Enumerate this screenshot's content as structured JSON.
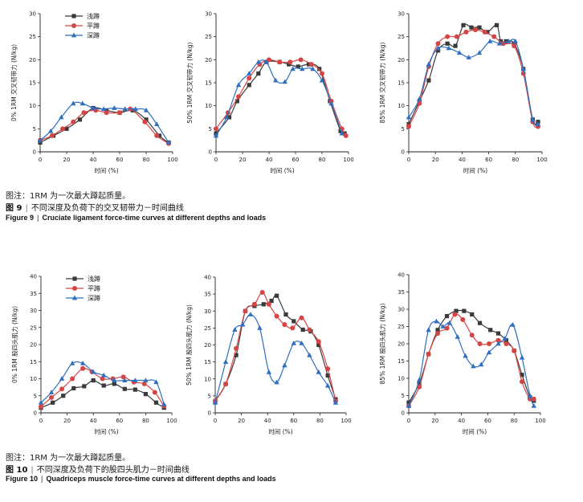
{
  "colors": {
    "squat_shallow": "#3a3a3a",
    "squat_parallel": "#d64545",
    "squat_deep": "#2e6fbf",
    "axis": "#222222"
  },
  "legend": [
    "浅蹲",
    "平蹲",
    "深蹲"
  ],
  "figure9": {
    "note": "图注：1RM 为一次最大蹲起质量。",
    "title_cn_num": "图 9",
    "title_cn": "不同深度及负荷下的交叉韧带力－时间曲线",
    "title_en_num": "Figure 9",
    "title_en": "Cruciate ligament force-time curves at different depths and loads"
  },
  "figure10": {
    "note": "图注：1RM 为一次最大蹲起质量。",
    "title_cn_num": "图 10",
    "title_cn": "不同深度及负荷下的股四头肌力－时间曲线",
    "title_en_num": "Figure 10",
    "title_en": "Quadriceps muscle force-time curves at different depths and loads"
  },
  "chart_data": [
    {
      "type": "line",
      "id": "c1",
      "title": "",
      "xlabel": "时间 (%)",
      "ylabel": "0% 1RM 交叉韧带力 (N/kg)",
      "xlim": [
        0,
        100
      ],
      "ylim": [
        0,
        30
      ],
      "xticks": [
        0,
        20,
        40,
        60,
        80,
        100
      ],
      "yticks": [
        0,
        5,
        10,
        15,
        20,
        25,
        30
      ],
      "legend_position": "top-left",
      "grid": false,
      "series": [
        {
          "name": "浅蹲",
          "x": [
            0,
            10,
            20,
            30,
            40,
            50,
            60,
            70,
            80,
            90,
            97
          ],
          "y": [
            2,
            3.5,
            5,
            7,
            9.5,
            9,
            8.5,
            9,
            7,
            3.5,
            2
          ]
        },
        {
          "name": "平蹲",
          "x": [
            0,
            9,
            17,
            25,
            33,
            42,
            50,
            60,
            68,
            79,
            88,
            97
          ],
          "y": [
            2.5,
            3.5,
            5,
            6.5,
            8.5,
            9,
            8.5,
            8.5,
            9.3,
            6.5,
            3.5,
            1.8
          ]
        },
        {
          "name": "深蹲",
          "x": [
            0,
            8,
            16,
            25,
            32,
            40,
            48,
            56,
            64,
            72,
            80,
            88,
            97
          ],
          "y": [
            2.5,
            4.5,
            7.5,
            10.5,
            10.5,
            9.5,
            9.3,
            9.5,
            9.3,
            9.3,
            9,
            6,
            2
          ]
        }
      ]
    },
    {
      "type": "line",
      "id": "c2",
      "title": "",
      "xlabel": "时间 (%)",
      "ylabel": "50% 1RM 交叉韧带力 (N/kg)",
      "xlim": [
        0,
        100
      ],
      "ylim": [
        0,
        30
      ],
      "xticks": [
        0,
        20,
        40,
        60,
        80,
        100
      ],
      "yticks": [
        0,
        5,
        10,
        15,
        20,
        25,
        30
      ],
      "legend_position": "none",
      "grid": false,
      "series": [
        {
          "name": "浅蹲",
          "x": [
            0,
            10,
            16,
            25,
            32,
            38,
            48,
            55,
            62,
            70,
            78,
            86,
            94,
            97
          ],
          "y": [
            4,
            7.5,
            11,
            14.5,
            17,
            19.5,
            19.5,
            19,
            18.5,
            19,
            18,
            11,
            4.5,
            4
          ]
        },
        {
          "name": "平蹲",
          "x": [
            0,
            9,
            17,
            25,
            33,
            40,
            48,
            56,
            64,
            72,
            80,
            87,
            95,
            98
          ],
          "y": [
            5,
            8.5,
            12,
            16,
            19,
            20,
            19.5,
            19.5,
            20,
            19,
            17,
            11,
            5,
            3.5
          ]
        },
        {
          "name": "深蹲",
          "x": [
            0,
            8,
            17,
            25,
            32,
            38,
            45,
            52,
            58,
            65,
            73,
            80,
            87,
            95
          ],
          "y": [
            3.5,
            7.5,
            14.5,
            17,
            19.5,
            19.5,
            15.5,
            15.2,
            18,
            18,
            18,
            15.5,
            10.5,
            4
          ]
        }
      ]
    },
    {
      "type": "line",
      "id": "c3",
      "title": "",
      "xlabel": "时间 (%)",
      "ylabel": "85% 1RM 交叉韧带力 (N/kg)",
      "xlim": [
        0,
        100
      ],
      "ylim": [
        0,
        30
      ],
      "xticks": [
        0,
        20,
        40,
        60,
        80,
        100
      ],
      "yticks": [
        0,
        5,
        10,
        15,
        20,
        25,
        30
      ],
      "legend_position": "none",
      "grid": false,
      "series": [
        {
          "name": "浅蹲",
          "x": [
            0,
            8,
            15,
            22,
            29,
            35,
            41,
            47,
            53,
            59,
            66,
            69,
            73,
            79,
            86,
            93,
            97
          ],
          "y": [
            6,
            11,
            15.5,
            22,
            23.5,
            23,
            27.5,
            27,
            27,
            26,
            27.5,
            24,
            24,
            23.5,
            18,
            7,
            6.5
          ]
        },
        {
          "name": "平蹲",
          "x": [
            0,
            8,
            15,
            22,
            29,
            36,
            43,
            50,
            57,
            64,
            71,
            79,
            86,
            93,
            97
          ],
          "y": [
            5.5,
            10.5,
            18.5,
            23.5,
            25,
            25,
            26,
            26.5,
            26,
            25,
            23.5,
            23,
            17,
            6.5,
            5.5
          ]
        },
        {
          "name": "深蹲",
          "x": [
            0,
            8,
            15,
            22,
            30,
            38,
            45,
            53,
            61,
            68,
            75,
            80,
            86,
            93,
            97
          ],
          "y": [
            7.5,
            11.5,
            19,
            22.5,
            22.5,
            21.5,
            20.5,
            21.5,
            24,
            23.5,
            24,
            24,
            18,
            7,
            6
          ]
        }
      ]
    },
    {
      "type": "line",
      "id": "c4",
      "title": "",
      "xlabel": "时间 (%)",
      "ylabel": "0% 1RM 股四头肌力 (N/kg)",
      "xlim": [
        0,
        100
      ],
      "ylim": [
        0,
        40
      ],
      "xticks": [
        0,
        20,
        40,
        60,
        80,
        100
      ],
      "yticks": [
        0,
        5,
        10,
        15,
        20,
        25,
        30,
        35,
        40
      ],
      "legend_position": "top-left",
      "grid": false,
      "series": [
        {
          "name": "浅蹲",
          "x": [
            0,
            9,
            17,
            25,
            33,
            40,
            48,
            56,
            64,
            72,
            80,
            88,
            94
          ],
          "y": [
            1.5,
            3,
            5,
            7.2,
            7.8,
            9.5,
            8,
            8.5,
            7,
            6.8,
            5.5,
            3,
            1.5
          ]
        },
        {
          "name": "平蹲",
          "x": [
            0,
            8,
            16,
            24,
            32,
            39,
            47,
            55,
            63,
            71,
            79,
            87,
            94
          ],
          "y": [
            1.8,
            4.5,
            7,
            10,
            13,
            12,
            10,
            10,
            10.5,
            9,
            8.5,
            6,
            2
          ]
        },
        {
          "name": "深蹲",
          "x": [
            0,
            8,
            16,
            24,
            32,
            40,
            48,
            56,
            64,
            72,
            80,
            88,
            94
          ],
          "y": [
            3,
            6,
            10,
            14.5,
            14.5,
            12,
            11,
            9.5,
            9.5,
            9.5,
            9.5,
            9,
            2.5
          ]
        }
      ]
    },
    {
      "type": "line",
      "id": "c5",
      "title": "",
      "xlabel": "时间 (%)",
      "ylabel": "50% 1RM 股四头肌力 (N/kg)",
      "xlim": [
        0,
        100
      ],
      "ylim": [
        0,
        40
      ],
      "xticks": [
        0,
        20,
        40,
        60,
        80,
        100
      ],
      "yticks": [
        0,
        5,
        10,
        15,
        20,
        25,
        30,
        35,
        40
      ],
      "legend_position": "none",
      "grid": false,
      "series": [
        {
          "name": "浅蹲",
          "x": [
            0,
            8,
            16,
            23,
            30,
            37,
            43,
            47,
            54,
            60,
            67,
            73,
            79,
            86,
            92
          ],
          "y": [
            3.5,
            8.5,
            17,
            30,
            31.5,
            32,
            33,
            34.5,
            29,
            27,
            24.5,
            24,
            20,
            11,
            4
          ]
        },
        {
          "name": "平蹲",
          "x": [
            0,
            8,
            16,
            23,
            30,
            36,
            41,
            47,
            53,
            59,
            66,
            72,
            79,
            86,
            92
          ],
          "y": [
            3.5,
            8.5,
            19,
            30,
            32,
            35.5,
            32,
            28.5,
            26,
            25,
            28,
            24.5,
            21,
            13,
            3.5
          ]
        },
        {
          "name": "深蹲",
          "x": [
            0,
            8,
            15,
            21,
            27,
            34,
            41,
            47,
            53,
            60,
            66,
            72,
            79,
            86,
            92
          ],
          "y": [
            3,
            15,
            24.5,
            26,
            29,
            25,
            12,
            9,
            14,
            20.5,
            20.5,
            17,
            12,
            8,
            3
          ]
        }
      ]
    },
    {
      "type": "line",
      "id": "c6",
      "title": "",
      "xlabel": "时间 (%)",
      "ylabel": "85% 1RM 股四头肌力 (N/kg)",
      "xlim": [
        0,
        100
      ],
      "ylim": [
        0,
        40
      ],
      "xticks": [
        0,
        20,
        40,
        60,
        80,
        100
      ],
      "yticks": [
        0,
        5,
        10,
        15,
        20,
        25,
        30,
        35,
        40
      ],
      "legend_position": "none",
      "grid": false,
      "series": [
        {
          "name": "浅蹲",
          "x": [
            0,
            8,
            15,
            22,
            29,
            36,
            42,
            48,
            54,
            62,
            68,
            74,
            80,
            86,
            92,
            95
          ],
          "y": [
            3,
            8.5,
            17,
            24,
            28,
            29.5,
            29.5,
            28.5,
            26,
            24,
            23,
            21,
            18,
            11,
            4.5,
            3.5
          ]
        },
        {
          "name": "平蹲",
          "x": [
            0,
            8,
            15,
            22,
            29,
            35,
            41,
            48,
            54,
            61,
            68,
            74,
            80,
            86,
            92,
            95
          ],
          "y": [
            2,
            7.5,
            17,
            23,
            24.5,
            28.5,
            27,
            22.5,
            20,
            20,
            21,
            20,
            18,
            9,
            4,
            4
          ]
        },
        {
          "name": "深蹲",
          "x": [
            0,
            8,
            15,
            21,
            26,
            31,
            37,
            43,
            49,
            55,
            61,
            68,
            73,
            79,
            86,
            92,
            95
          ],
          "y": [
            2,
            9.5,
            24,
            26.5,
            25,
            26,
            22,
            16.5,
            13.5,
            14,
            17.5,
            20,
            21.5,
            25.5,
            16,
            5,
            2
          ]
        }
      ]
    }
  ]
}
